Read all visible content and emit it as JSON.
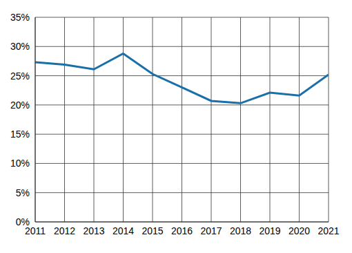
{
  "chart_data": {
    "type": "line",
    "x": [
      2011,
      2012,
      2013,
      2014,
      2015,
      2016,
      2017,
      2018,
      2019,
      2020,
      2021
    ],
    "values": [
      27.3,
      26.9,
      26.1,
      28.8,
      25.3,
      23.0,
      20.7,
      20.3,
      22.1,
      21.6,
      25.2
    ],
    "color": "#1a6fa8",
    "xlim": [
      2011,
      2021
    ],
    "xticks": [
      2011,
      2012,
      2013,
      2014,
      2015,
      2016,
      2017,
      2018,
      2019,
      2020,
      2021
    ],
    "ylim": [
      0,
      35
    ],
    "yticks": [
      {
        "value": 0,
        "label": "0%"
      },
      {
        "value": 5,
        "label": "5%"
      },
      {
        "value": 10,
        "label": "10%"
      },
      {
        "value": 15,
        "label": "15%"
      },
      {
        "value": 20,
        "label": "20%"
      },
      {
        "value": 25,
        "label": "25%"
      },
      {
        "value": 30,
        "label": "30%"
      },
      {
        "value": 35,
        "label": "35%"
      }
    ],
    "grid": true
  }
}
